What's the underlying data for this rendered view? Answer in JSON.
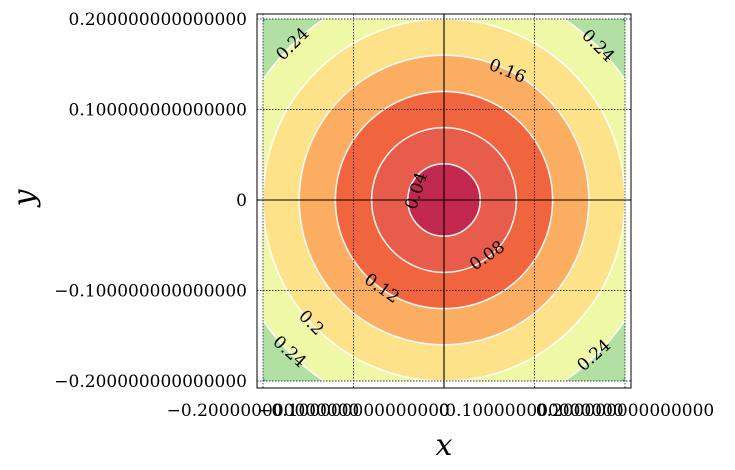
{
  "chart_data": {
    "type": "contour",
    "xlabel": "x",
    "ylabel": "y",
    "xlim": [
      -0.2,
      0.2
    ],
    "ylim": [
      -0.2,
      0.2
    ],
    "grid": true,
    "function": "sqrt(x^2 + y^2)",
    "levels": [
      0,
      0.04,
      0.08,
      0.12,
      0.16,
      0.2,
      0.24,
      0.28
    ],
    "fill_colors": [
      "#c2284f",
      "#e75c4a",
      "#f0643e",
      "#fbae61",
      "#fde28a",
      "#eff8a6",
      "#b2e0a2",
      "#62b9a8"
    ],
    "line_levels": [
      0.04,
      0.08,
      0.12,
      0.16,
      0.2,
      0.24
    ],
    "line_color": "#ffffff",
    "x_ticks": [
      -0.2,
      -0.1,
      0,
      0.1,
      0.2
    ],
    "x_tick_labels": [
      "−0.200000000000000",
      "−0.100000000000000",
      "0",
      "0.100000000000000",
      "0.200000000000000"
    ],
    "y_ticks": [
      0.2,
      0.1,
      0,
      -0.1,
      -0.2
    ],
    "y_tick_labels": [
      "0.200000000000000",
      "0.100000000000000",
      "0",
      "−0.100000000000000",
      "−0.200000000000000"
    ],
    "contour_labels": [
      {
        "text": "0.04",
        "x": -0.03,
        "y": 0.01,
        "angle": -72
      },
      {
        "text": "0.08",
        "x": 0.048,
        "y": -0.062,
        "angle": -35
      },
      {
        "text": "0.12",
        "x": -0.069,
        "y": -0.098,
        "angle": 35
      },
      {
        "text": "0.16",
        "x": 0.07,
        "y": 0.142,
        "angle": 22
      },
      {
        "text": "0.2",
        "x": -0.147,
        "y": -0.136,
        "angle": 45
      },
      {
        "text": "0.24",
        "x": -0.167,
        "y": 0.172,
        "angle": -45
      },
      {
        "text": "0.24",
        "x": 0.17,
        "y": 0.17,
        "angle": 45
      },
      {
        "text": "0.24",
        "x": -0.171,
        "y": -0.168,
        "angle": 42
      },
      {
        "text": "0.24",
        "x": 0.166,
        "y": -0.172,
        "angle": -42
      }
    ]
  }
}
